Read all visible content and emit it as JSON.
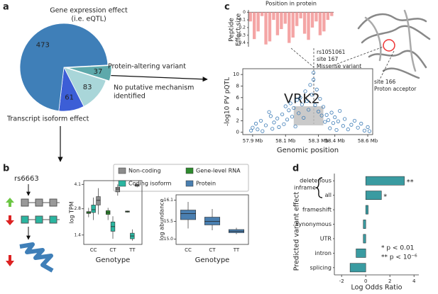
{
  "panel_labels": [
    "a",
    "b",
    "c",
    "d"
  ],
  "diagram": {
    "snp": "rs6663"
  },
  "chart_data": [
    {
      "type": "pie",
      "values": [
        37,
        83,
        61,
        473
      ],
      "labels": [
        [
          "Protein-altering variant"
        ],
        [
          "No putative mechanism",
          "identified"
        ],
        [
          "Transcript isoform effect"
        ],
        [
          "Gene expression effect",
          "(i.e. eQTL)"
        ]
      ],
      "colors": [
        "#5ea9ab",
        "#a9d6d9",
        "#3c5ed6",
        "#3f7fb8"
      ]
    },
    {
      "type": "bar",
      "title": "Position in protein",
      "ylabel": [
        "Peptide",
        "Effect size"
      ],
      "values": [
        -0.12,
        -0.35,
        -0.25,
        -0.05,
        -0.42,
        -0.38,
        -0.1,
        -0.3,
        -0.22,
        -0.15,
        -0.4,
        -0.33,
        -0.18,
        -0.08,
        -0.28,
        -0.36,
        -0.2,
        -0.12,
        -0.3,
        -0.25,
        -0.1,
        -0.05
      ],
      "color": "#f4a5a5",
      "ylim": [
        -0.45,
        0.03
      ],
      "yticks": [
        0,
        -0.1,
        -0.2,
        -0.3,
        -0.4
      ]
    },
    {
      "type": "scatter",
      "gene": "VRK2",
      "annotations": [
        [
          "rs1051061",
          "site 167",
          "Missense variant"
        ],
        [
          "site 166",
          "Proton acceptor"
        ]
      ],
      "ylabel": "-log10 PV pQTL",
      "xlabel": "Genomic position",
      "x": [
        57.89,
        57.9,
        57.92,
        57.93,
        57.95,
        57.96,
        57.98,
        58.0,
        58.01,
        58.02,
        58.03,
        58.05,
        58.06,
        58.08,
        58.09,
        58.1,
        58.11,
        58.12,
        58.13,
        58.14,
        58.15,
        58.16,
        58.17,
        58.18,
        58.19,
        58.2,
        58.21,
        58.22,
        58.23,
        58.24,
        58.25,
        58.26,
        58.27,
        58.27,
        58.28,
        58.29,
        58.3,
        58.31,
        58.32,
        58.33,
        58.34,
        58.35,
        58.36,
        58.37,
        58.38,
        58.39,
        58.4,
        58.41,
        58.42,
        58.43,
        58.45,
        58.46,
        58.48,
        58.5,
        58.52,
        58.54,
        58.56,
        58.58,
        58.6,
        58.61
      ],
      "y": [
        0.3,
        0.8,
        1.5,
        0.5,
        2.0,
        0.2,
        1.2,
        3.5,
        2.8,
        0.6,
        1.7,
        2.4,
        0.9,
        3.1,
        1.4,
        4.5,
        2.2,
        3.8,
        5.0,
        2.7,
        4.2,
        1.0,
        5.6,
        3.3,
        6.0,
        4.8,
        2.5,
        7.1,
        5.4,
        3.9,
        8.2,
        6.5,
        10.3,
        9.1,
        4.7,
        7.4,
        3.6,
        5.8,
        2.9,
        4.4,
        1.8,
        3.0,
        2.1,
        0.7,
        3.4,
        1.6,
        2.6,
        0.4,
        1.9,
        3.7,
        1.1,
        2.3,
        0.5,
        1.3,
        2.0,
        0.8,
        1.5,
        0.3,
        0.9,
        0.2
      ],
      "color": "#3a7ab5",
      "xlim": [
        57.84,
        58.63
      ],
      "ylim": [
        -0.4,
        11
      ],
      "xticks": [
        {
          "value": 57.9,
          "label": "57.9 Mb"
        },
        {
          "value": 58.1,
          "label": "58.1 Mb"
        },
        {
          "value": 58.3,
          "label": "58.3 Mb"
        },
        {
          "value": 58.4,
          "label": "58.4 Mb"
        },
        {
          "value": 58.6,
          "label": "58.6 Mb"
        }
      ],
      "yticks": [
        0,
        2,
        4,
        6,
        8,
        10
      ]
    },
    {
      "type": "box",
      "ylabel": "log TPM",
      "xlabel": "Genotype",
      "categories": [
        "CC",
        "CT",
        "TT"
      ],
      "series": [
        {
          "name": "Gene-level RNA",
          "color": "#2e8b2e",
          "low": [
            2.35,
            2.2,
            2.6
          ],
          "q1": [
            2.55,
            2.5,
            2.62
          ],
          "median": [
            2.6,
            2.6,
            2.65
          ],
          "q3": [
            2.65,
            2.7,
            2.68
          ],
          "high": [
            2.85,
            2.85,
            2.7
          ]
        },
        {
          "name": "Coding isoform",
          "color": "#2ab5a0",
          "low": [
            2.2,
            1.2,
            1.1
          ],
          "q1": [
            2.6,
            1.6,
            1.2
          ],
          "median": [
            2.75,
            1.85,
            1.35
          ],
          "q3": [
            3.0,
            2.1,
            1.5
          ],
          "high": [
            3.4,
            2.4,
            1.7
          ]
        },
        {
          "name": "Non-coding",
          "color": "#8c8c8c",
          "low": [
            2.5,
            3.5,
            3.95
          ],
          "q1": [
            3.0,
            3.7,
            4.0
          ],
          "median": [
            3.25,
            3.85,
            4.05
          ],
          "q3": [
            3.45,
            3.95,
            4.1
          ],
          "high": [
            3.9,
            4.1,
            4.15
          ]
        }
      ],
      "ylim": [
        0.9,
        4.3
      ],
      "yticks": [
        1.4,
        2.8,
        4.1
      ]
    },
    {
      "type": "box",
      "ylabel": "log abundance",
      "xlabel": "Genotype",
      "categories": [
        "CC",
        "CT",
        "TT"
      ],
      "series": [
        {
          "name": "Protein",
          "color": "#4a7fb0",
          "low": [
            15.3,
            15.25,
            15.14
          ],
          "q1": [
            15.55,
            15.4,
            15.18
          ],
          "median": [
            15.72,
            15.5,
            15.22
          ],
          "q3": [
            15.82,
            15.62,
            15.27
          ],
          "high": [
            16.05,
            15.85,
            15.32
          ]
        }
      ],
      "ylim": [
        14.85,
        16.25
      ],
      "yticks": [
        {
          "value": 15,
          "label": "15.0"
        },
        15.5,
        16.1
      ]
    },
    {
      "type": "hbar",
      "ylabel": "Predicted variant effect",
      "xlabel": "Log Odds Ratio",
      "categories": [
        "deleterious",
        "all",
        "frameshift",
        "synonymous",
        "UTR",
        "intron",
        "splicing"
      ],
      "values": [
        3.2,
        1.3,
        0.2,
        -0.2,
        -0.2,
        -0.8,
        -1.3
      ],
      "significance": [
        "**",
        "*",
        null,
        null,
        null,
        null,
        null
      ],
      "color": "#3a9ba1",
      "xlim": [
        -2.6,
        4.4
      ],
      "xticks": [
        -2,
        0,
        2,
        4
      ],
      "bracket_label": "inframe",
      "notes": [
        "*  p < 0.01",
        "** p < 10⁻⁶"
      ]
    }
  ]
}
